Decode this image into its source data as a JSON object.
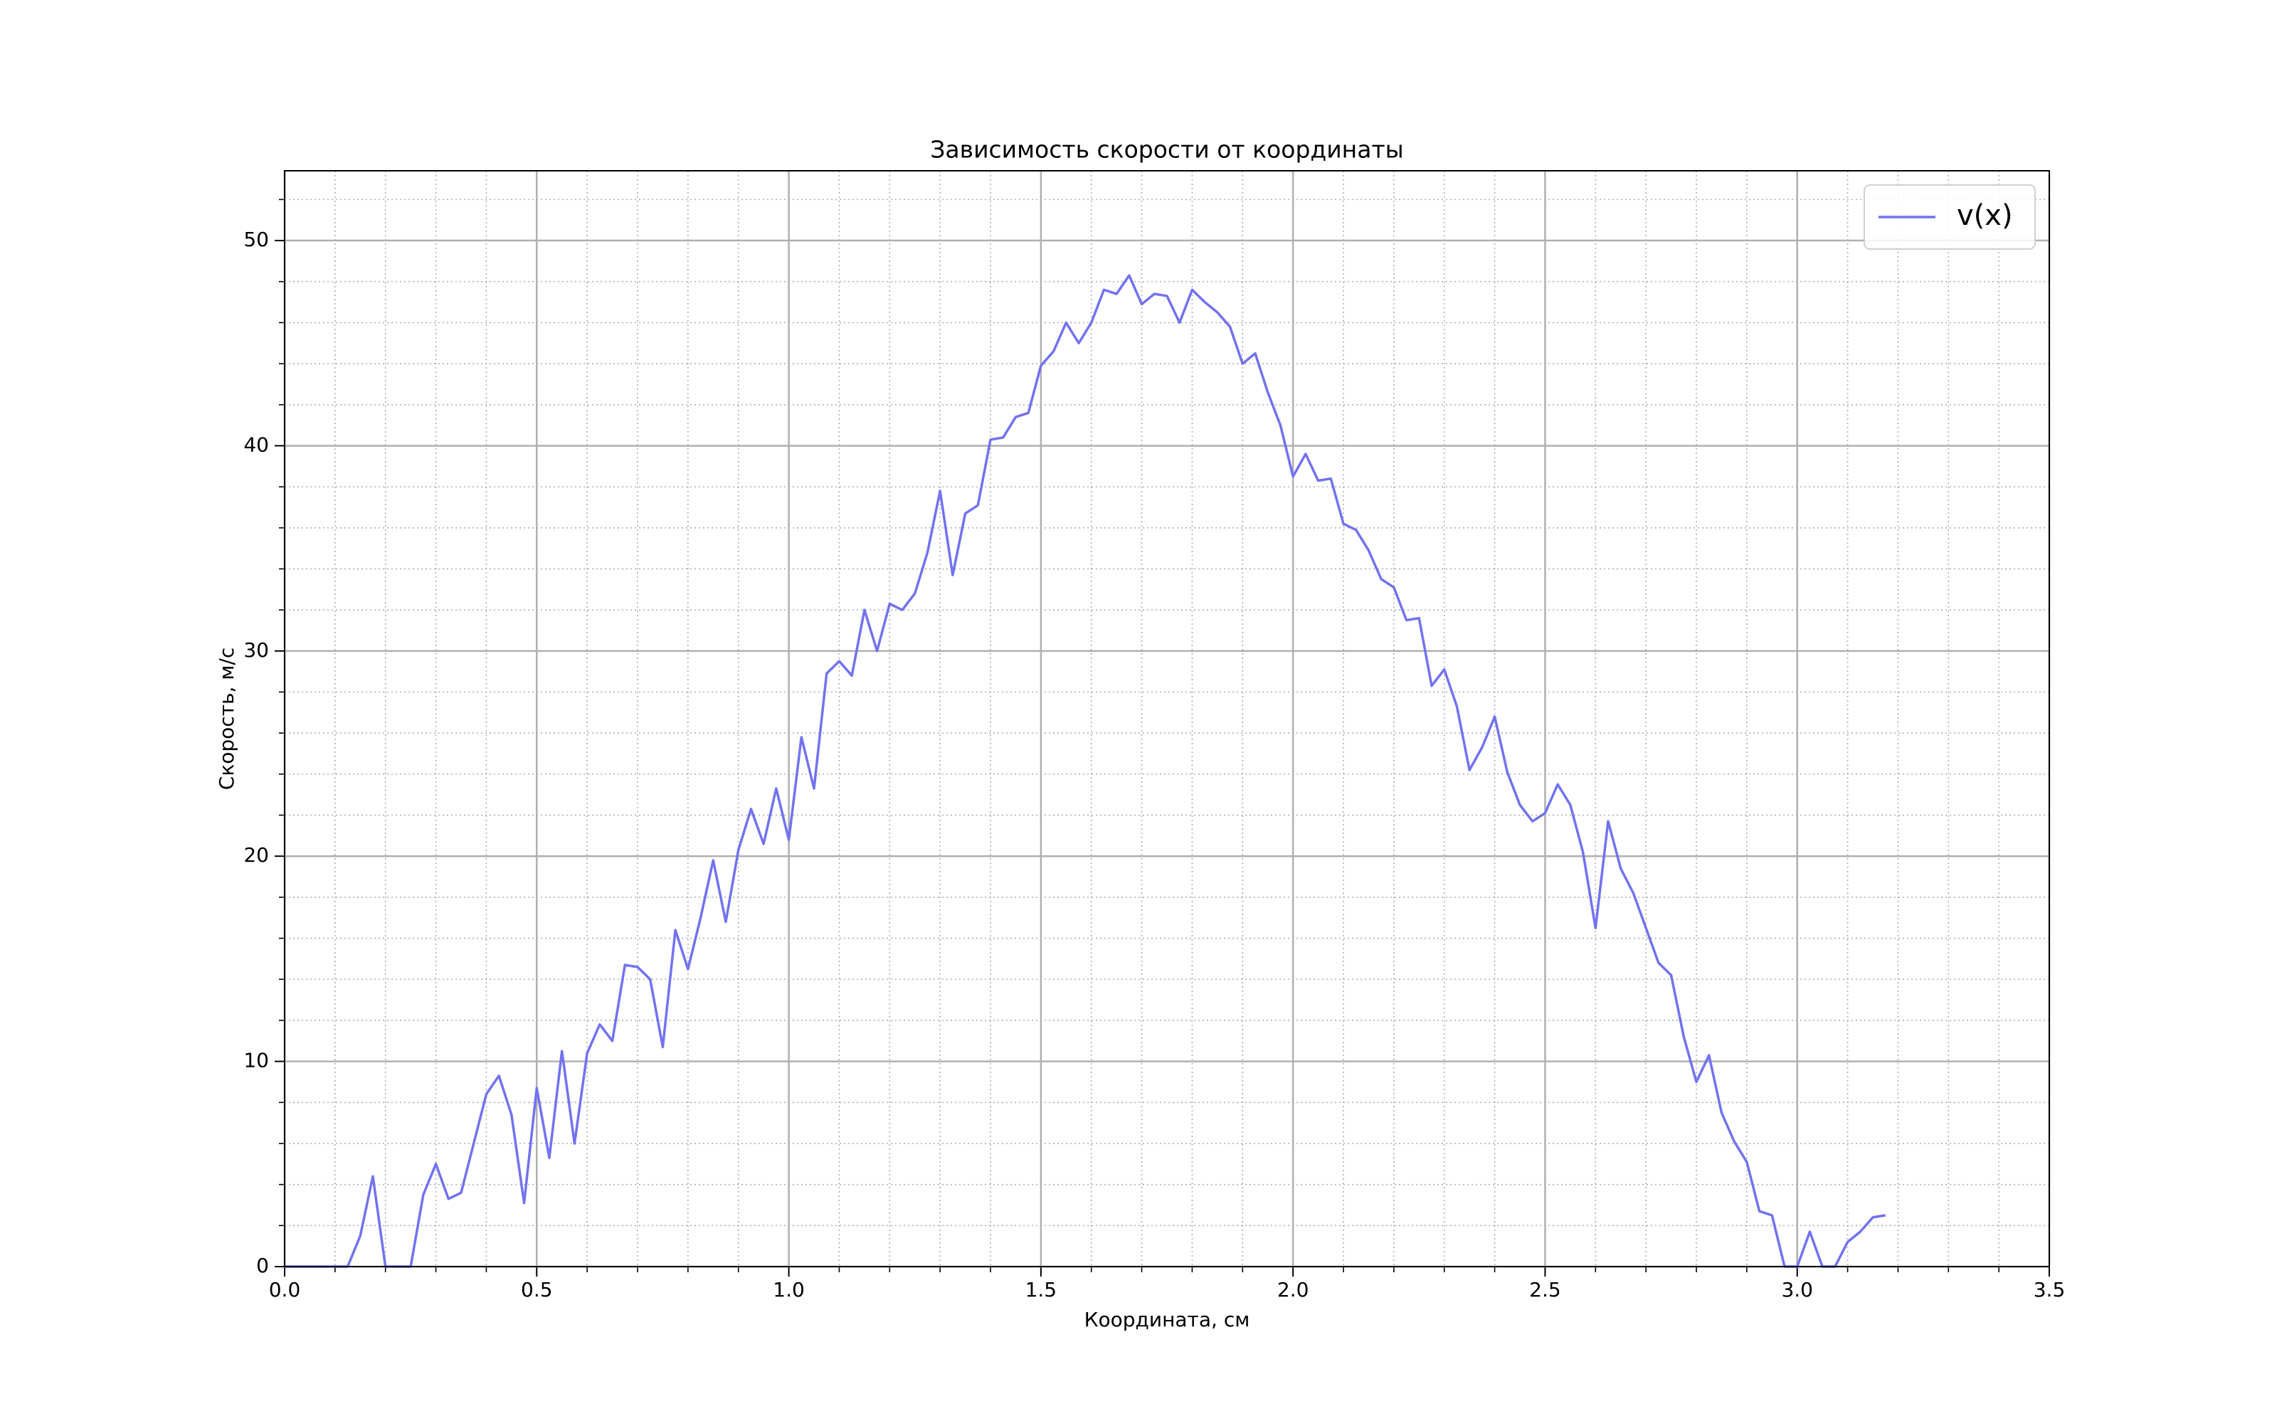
{
  "chart_data": {
    "type": "line",
    "title": "Зависимость скорости от координаты",
    "xlabel": "Координата, см",
    "ylabel": "Скорость, м/с",
    "x": [
      0,
      0.025,
      0.05,
      0.075,
      0.1,
      0.125,
      0.15,
      0.175,
      0.2,
      0.225,
      0.25,
      0.275,
      0.3,
      0.325,
      0.35,
      0.375,
      0.4,
      0.425,
      0.45,
      0.475,
      0.5,
      0.525,
      0.55,
      0.575,
      0.6,
      0.625,
      0.65,
      0.675,
      0.7,
      0.725,
      0.75,
      0.775,
      0.8,
      0.825,
      0.85,
      0.875,
      0.9,
      0.925,
      0.95,
      0.975,
      1.0,
      1.025,
      1.05,
      1.075,
      1.1,
      1.125,
      1.15,
      1.175,
      1.2,
      1.225,
      1.25,
      1.275,
      1.3,
      1.325,
      1.35,
      1.375,
      1.4,
      1.425,
      1.45,
      1.475,
      1.5,
      1.525,
      1.55,
      1.575,
      1.6,
      1.625,
      1.65,
      1.675,
      1.7,
      1.725,
      1.75,
      1.775,
      1.8,
      1.825,
      1.85,
      1.875,
      1.9,
      1.925,
      1.95,
      1.975,
      2.0,
      2.025,
      2.05,
      2.075,
      2.1,
      2.125,
      2.15,
      2.175,
      2.2,
      2.225,
      2.25,
      2.275,
      2.3,
      2.325,
      2.35,
      2.375,
      2.4,
      2.425,
      2.45,
      2.475,
      2.5,
      2.525,
      2.55,
      2.575,
      2.6,
      2.625,
      2.65,
      2.675,
      2.7,
      2.725,
      2.75,
      2.775,
      2.8,
      2.825,
      2.85,
      2.875,
      2.9,
      2.925,
      2.95,
      2.975,
      3.0,
      3.025,
      3.05,
      3.075,
      3.1,
      3.125,
      3.15,
      3.175
    ],
    "series": [
      {
        "name": "v(x)",
        "color": "#7272f2",
        "values": [
          0,
          0,
          0,
          0,
          0,
          0,
          1.5,
          4.4,
          0,
          0,
          0,
          3.5,
          5.0,
          3.3,
          3.6,
          6.0,
          8.4,
          9.3,
          7.4,
          3.1,
          8.7,
          5.3,
          10.5,
          6.0,
          10.4,
          11.8,
          11.0,
          14.7,
          14.6,
          14.0,
          10.7,
          16.4,
          14.5,
          17.0,
          19.8,
          16.8,
          20.3,
          22.3,
          20.6,
          23.3,
          20.8,
          25.8,
          23.3,
          28.9,
          29.5,
          28.8,
          32.0,
          30.0,
          32.3,
          32.0,
          32.8,
          34.8,
          37.8,
          33.7,
          36.7,
          37.1,
          40.3,
          40.4,
          41.4,
          41.6,
          43.9,
          44.6,
          46.0,
          45.0,
          46.0,
          47.6,
          47.4,
          48.3,
          46.9,
          47.4,
          47.3,
          46.0,
          47.6,
          47.0,
          46.5,
          45.8,
          44.0,
          44.5,
          42.6,
          41.0,
          38.5,
          39.6,
          38.3,
          38.4,
          36.2,
          35.9,
          34.9,
          33.5,
          33.1,
          31.5,
          31.6,
          28.3,
          29.1,
          27.3,
          24.2,
          25.3,
          26.8,
          24.1,
          22.5,
          21.7,
          22.1,
          23.5,
          22.5,
          20.2,
          16.5,
          21.7,
          19.4,
          18.2,
          16.5,
          14.8,
          14.2,
          11.2,
          9.0,
          10.3,
          7.5,
          6.1,
          5.1,
          2.7,
          2.5,
          0,
          0,
          1.7,
          0,
          0,
          1.2,
          1.7,
          2.4,
          2.5
        ]
      }
    ],
    "xlim": [
      0,
      3.5
    ],
    "ylim": [
      0,
      53.4
    ],
    "xticks": [
      {
        "value": 0,
        "label": "0.0"
      },
      0.5,
      {
        "value": 1,
        "label": "1.0"
      },
      1.5,
      {
        "value": 2,
        "label": "2.0"
      },
      2.5,
      {
        "value": 3,
        "label": "3.0"
      },
      3.5
    ],
    "yticks": [
      0,
      10,
      20,
      30,
      40,
      50
    ],
    "xminorticks": [
      0.1,
      0.2,
      0.3,
      0.4,
      0.6,
      0.7,
      0.8,
      0.9,
      1.1,
      1.2,
      1.3,
      1.4,
      1.6,
      1.7,
      1.8,
      1.9,
      2.1,
      2.2,
      2.3,
      2.4,
      2.6,
      2.7,
      2.8,
      2.9,
      3.1,
      3.2,
      3.3,
      3.4
    ],
    "yminorticks": [
      2,
      4,
      6,
      8,
      12,
      14,
      16,
      18,
      22,
      24,
      26,
      28,
      32,
      34,
      36,
      38,
      42,
      44,
      46,
      48,
      52
    ],
    "grid": true,
    "minor_grid": true,
    "legend": "upper right"
  }
}
